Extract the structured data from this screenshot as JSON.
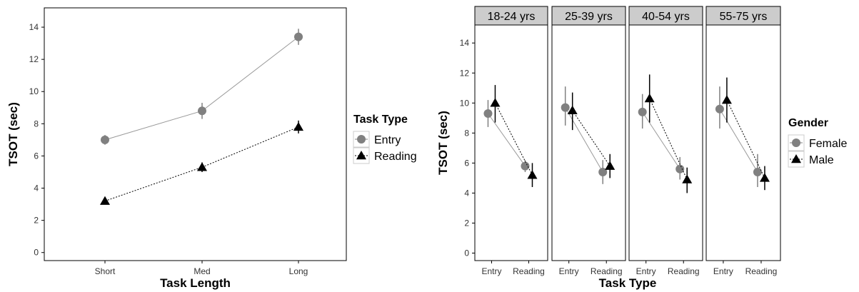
{
  "chart_data": [
    {
      "type": "line",
      "xlabel": "Task Length",
      "ylabel": "TSOT (sec)",
      "categories": [
        "Short",
        "Med",
        "Long"
      ],
      "ylim": [
        -0.5,
        15.2
      ],
      "yticks": [
        0,
        2,
        4,
        6,
        8,
        10,
        12,
        14
      ],
      "grid": false,
      "legend": {
        "title": "Task Type",
        "position": "right"
      },
      "series": [
        {
          "name": "Entry",
          "marker": "circle",
          "color": "#808080",
          "line": "solid",
          "values": [
            7.0,
            8.8,
            13.4
          ],
          "error": [
            [
              6.7,
              7.3
            ],
            [
              8.3,
              9.3
            ],
            [
              12.9,
              13.9
            ]
          ]
        },
        {
          "name": "Reading",
          "marker": "triangle",
          "color": "#000000",
          "line": "dotted",
          "values": [
            3.2,
            5.3,
            7.8
          ],
          "error": [
            [
              3.0,
              3.4
            ],
            [
              5.0,
              5.6
            ],
            [
              7.4,
              8.2
            ]
          ]
        }
      ]
    },
    {
      "type": "line",
      "xlabel": "Task Type",
      "ylabel": "TSOT (sec)",
      "categories": [
        "Entry",
        "Reading"
      ],
      "ylim": [
        -0.5,
        15.2
      ],
      "yticks": [
        0,
        2,
        4,
        6,
        8,
        10,
        12,
        14
      ],
      "grid": false,
      "legend": {
        "title": "Gender",
        "position": "right"
      },
      "panels": [
        {
          "label": "18-24 yrs",
          "series": [
            {
              "name": "Female",
              "values": [
                9.3,
                5.8
              ],
              "error": [
                [
                  8.4,
                  10.2
                ],
                [
                  5.4,
                  6.2
                ]
              ]
            },
            {
              "name": "Male",
              "values": [
                10.0,
                5.2
              ],
              "error": [
                [
                  8.7,
                  11.2
                ],
                [
                  4.4,
                  6.0
                ]
              ]
            }
          ]
        },
        {
          "label": "25-39 yrs",
          "series": [
            {
              "name": "Female",
              "values": [
                9.7,
                5.4
              ],
              "error": [
                [
                  8.5,
                  11.1
                ],
                [
                  4.6,
                  6.2
                ]
              ]
            },
            {
              "name": "Male",
              "values": [
                9.5,
                5.8
              ],
              "error": [
                [
                  8.2,
                  10.7
                ],
                [
                  5.0,
                  6.6
                ]
              ]
            }
          ]
        },
        {
          "label": "40-54 yrs",
          "series": [
            {
              "name": "Female",
              "values": [
                9.4,
                5.6
              ],
              "error": [
                [
                  8.3,
                  10.6
                ],
                [
                  4.9,
                  6.4
                ]
              ]
            },
            {
              "name": "Male",
              "values": [
                10.3,
                4.9
              ],
              "error": [
                [
                  8.7,
                  11.9
                ],
                [
                  4.0,
                  5.7
                ]
              ]
            }
          ]
        },
        {
          "label": "55-75 yrs",
          "series": [
            {
              "name": "Female",
              "values": [
                9.6,
                5.4
              ],
              "error": [
                [
                  8.3,
                  11.1
                ],
                [
                  4.4,
                  6.6
                ]
              ]
            },
            {
              "name": "Male",
              "values": [
                10.2,
                5.0
              ],
              "error": [
                [
                  8.7,
                  11.7
                ],
                [
                  4.2,
                  5.8
                ]
              ]
            }
          ]
        }
      ],
      "series_style": [
        {
          "name": "Female",
          "marker": "circle",
          "color": "#808080",
          "line": "solid"
        },
        {
          "name": "Male",
          "marker": "triangle",
          "color": "#000000",
          "line": "dotted"
        }
      ]
    }
  ]
}
